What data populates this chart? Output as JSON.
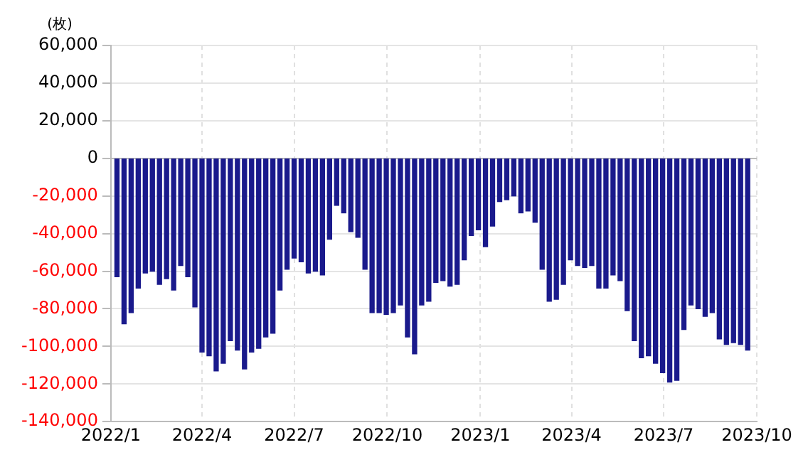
{
  "chart_data": {
    "type": "bar",
    "ylabel": "(枚)",
    "x": [
      "2022-01-07",
      "2022-01-14",
      "2022-01-21",
      "2022-01-28",
      "2022-02-04",
      "2022-02-11",
      "2022-02-18",
      "2022-02-25",
      "2022-03-04",
      "2022-03-11",
      "2022-03-18",
      "2022-03-25",
      "2022-04-01",
      "2022-04-08",
      "2022-04-15",
      "2022-04-22",
      "2022-04-29",
      "2022-05-06",
      "2022-05-13",
      "2022-05-20",
      "2022-05-27",
      "2022-06-03",
      "2022-06-10",
      "2022-06-17",
      "2022-06-24",
      "2022-07-01",
      "2022-07-08",
      "2022-07-15",
      "2022-07-22",
      "2022-07-29",
      "2022-08-05",
      "2022-08-12",
      "2022-08-19",
      "2022-08-26",
      "2022-09-02",
      "2022-09-09",
      "2022-09-16",
      "2022-09-23",
      "2022-09-30",
      "2022-10-07",
      "2022-10-14",
      "2022-10-21",
      "2022-10-28",
      "2022-11-04",
      "2022-11-11",
      "2022-11-18",
      "2022-11-25",
      "2022-12-02",
      "2022-12-09",
      "2022-12-16",
      "2022-12-23",
      "2022-12-30",
      "2023-01-06",
      "2023-01-13",
      "2023-01-20",
      "2023-01-27",
      "2023-02-03",
      "2023-02-10",
      "2023-02-17",
      "2023-02-24",
      "2023-03-03",
      "2023-03-10",
      "2023-03-17",
      "2023-03-24",
      "2023-03-31",
      "2023-04-07",
      "2023-04-14",
      "2023-04-21",
      "2023-04-28",
      "2023-05-05",
      "2023-05-12",
      "2023-05-19",
      "2023-05-26",
      "2023-06-02",
      "2023-06-09",
      "2023-06-16",
      "2023-06-23",
      "2023-06-30",
      "2023-07-07",
      "2023-07-14",
      "2023-07-21",
      "2023-07-28",
      "2023-08-04",
      "2023-08-11",
      "2023-08-18",
      "2023-08-25",
      "2023-09-01",
      "2023-09-08",
      "2023-09-15",
      "2023-09-22"
    ],
    "series": [
      {
        "color": "#1a1a8c",
        "values": [
          -63000,
          -88000,
          -82000,
          -69000,
          -61000,
          -60000,
          -67000,
          -64000,
          -70000,
          -57000,
          -63000,
          -79000,
          -103000,
          -105000,
          -113000,
          -109000,
          -97000,
          -102000,
          -112000,
          -103000,
          -101000,
          -95000,
          -93000,
          -70000,
          -59000,
          -53000,
          -55000,
          -61000,
          -60000,
          -62000,
          -43000,
          -25000,
          -29000,
          -39000,
          -42000,
          -59000,
          -82000,
          -82000,
          -83000,
          -82000,
          -78000,
          -95000,
          -104000,
          -78000,
          -76000,
          -66000,
          -65000,
          -68000,
          -67000,
          -54000,
          -41000,
          -38000,
          -47000,
          -36000,
          -23000,
          -22000,
          -20000,
          -29000,
          -28000,
          -34000,
          -59000,
          -76000,
          -75000,
          -67000,
          -54000,
          -57000,
          -58000,
          -57000,
          -69000,
          -69000,
          -62000,
          -65000,
          -81000,
          -97000,
          -106000,
          -105000,
          -109000,
          -114000,
          -119000,
          -118000,
          -91000,
          -78000,
          -80000,
          -84000,
          -82000,
          -96000,
          -99000,
          -98000,
          -99000,
          -102000
        ]
      }
    ],
    "xlim": [
      "2022-01-01",
      "2023-10-01"
    ],
    "xticks": [
      {
        "value": "2022-01-01",
        "label": "2022/1"
      },
      {
        "value": "2022-04-01",
        "label": "2022/4"
      },
      {
        "value": "2022-07-01",
        "label": "2022/7"
      },
      {
        "value": "2022-10-01",
        "label": "2022/10"
      },
      {
        "value": "2023-01-01",
        "label": "2023/1"
      },
      {
        "value": "2023-04-01",
        "label": "2023/4"
      },
      {
        "value": "2023-07-01",
        "label": "2023/7"
      },
      {
        "value": "2023-10-01",
        "label": "2023/10"
      }
    ],
    "ylim": [
      -140000,
      60000
    ],
    "yticks": [
      {
        "value": -140000,
        "label": "-140,000"
      },
      {
        "value": -120000,
        "label": "-120,000"
      },
      {
        "value": -100000,
        "label": "-100,000"
      },
      {
        "value": -80000,
        "label": "-80,000"
      },
      {
        "value": -60000,
        "label": "-60,000"
      },
      {
        "value": -40000,
        "label": "-40,000"
      },
      {
        "value": -20000,
        "label": "-20,000"
      },
      {
        "value": 0,
        "label": "0"
      },
      {
        "value": 20000,
        "label": "20,000"
      },
      {
        "value": 40000,
        "label": "40,000"
      },
      {
        "value": 60000,
        "label": "60,000"
      }
    ],
    "grid": true
  }
}
